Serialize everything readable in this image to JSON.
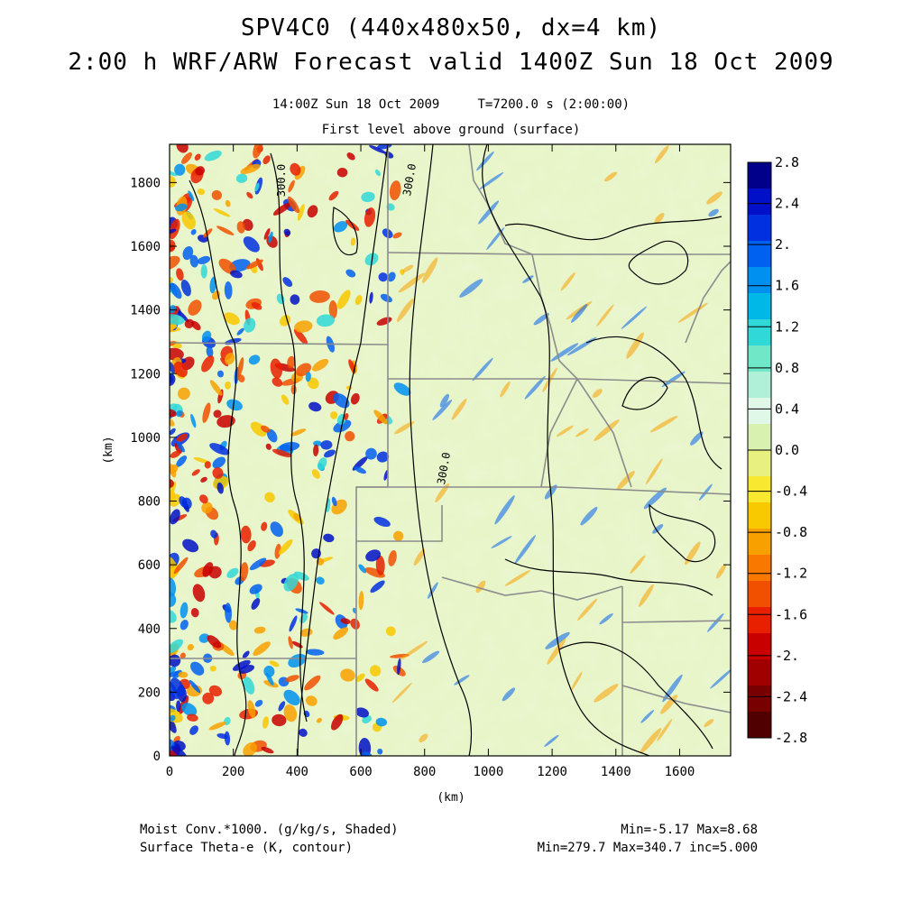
{
  "title": {
    "line1": "SPV4C0 (440x480x50, dx=4 km)",
    "line2": "2:00 h WRF/ARW Forecast valid 1400Z Sun 18 Oct 2009"
  },
  "subtitle": {
    "time": "14:00Z Sun 18 Oct 2009     T=7200.0 s (2:00:00)",
    "level": "First level above ground (surface)"
  },
  "map": {
    "x_axis_label": "(km)",
    "y_axis_label": "(km)",
    "x_range": [
      0,
      1760
    ],
    "y_range": [
      0,
      1920
    ],
    "x_ticks": [
      "0",
      "200",
      "400",
      "600",
      "800",
      "1000",
      "1200",
      "1400",
      "1600"
    ],
    "y_ticks": [
      "0",
      "200",
      "400",
      "600",
      "800",
      "1000",
      "1200",
      "1400",
      "1600",
      "1800"
    ],
    "contour_labels": [
      "300.0",
      "300.0",
      "300.0"
    ]
  },
  "colorbar": {
    "labels": [
      "2.8",
      "2.4",
      "2.",
      "1.6",
      "1.2",
      "0.8",
      "0.4",
      "0.0",
      "-0.4",
      "-0.8",
      "-1.2",
      "-1.6",
      "-2.",
      "-2.4",
      "-2.8"
    ],
    "colors": [
      "#00008b",
      "#0010c8",
      "#0030e0",
      "#0060f0",
      "#0090f0",
      "#00b8e8",
      "#30d8d8",
      "#70e8c8",
      "#b0f0d8",
      "#e0f8e8",
      "#d8f0b0",
      "#e8f080",
      "#f8e830",
      "#f8c800",
      "#f8a000",
      "#f87800",
      "#f05000",
      "#e82000",
      "#c80000",
      "#a00000",
      "#780000",
      "#500000"
    ]
  },
  "footer": {
    "left1": "Moist Conv.*1000. (g/kg/s, Shaded)",
    "left2": "Surface Theta-e (K, contour)",
    "right1": "Min=-5.17 Max=8.68",
    "right2": "Min=279.7 Max=340.7 inc=5.000"
  }
}
